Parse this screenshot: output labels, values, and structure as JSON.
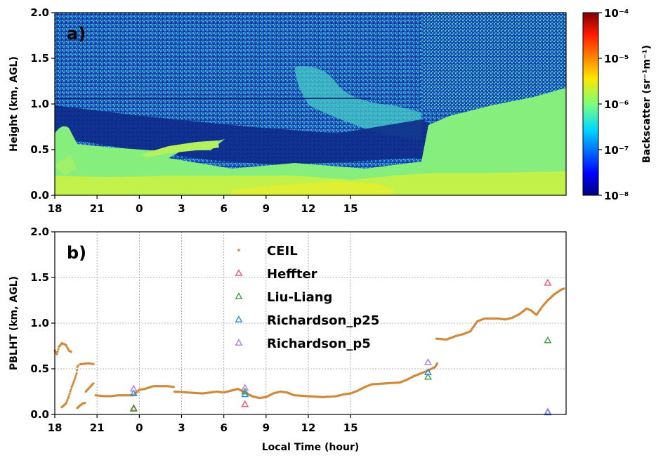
{
  "chart_data": [
    {
      "type": "heatmap",
      "panel_label": "a)",
      "ylabel": "Height (km, AGL)",
      "ylim": [
        0.0,
        2.0
      ],
      "yticks": [
        "0.0",
        "0.5",
        "1.0",
        "1.5",
        "2.0"
      ],
      "xticks": [
        "18",
        "21",
        "0",
        "3",
        "6",
        "9",
        "12",
        "15"
      ],
      "colorbar": {
        "label": "Backscatter (sr⁻¹m⁻¹)",
        "scale": "log",
        "ticks": [
          "10⁻⁸",
          "10⁻⁷",
          "10⁻⁶",
          "10⁻⁵",
          "10⁻⁴"
        ],
        "range_exponent": [
          -8,
          -4
        ],
        "colormap": "jet"
      }
    },
    {
      "type": "scatter",
      "panel_label": "b)",
      "xlabel": "Local Time (hour)",
      "ylabel": "PBLHT (km, AGL)",
      "ylim": [
        0.0,
        2.0
      ],
      "yticks": [
        "0.0",
        "0.5",
        "1.0",
        "1.5",
        "2.0"
      ],
      "xticks": [
        "18",
        "21",
        "0",
        "3",
        "6",
        "9",
        "12",
        "15"
      ],
      "x_hours_since_18": [
        0,
        3,
        6,
        9,
        12,
        15,
        18,
        21
      ],
      "grid": true,
      "legend_placement": "upper-center",
      "series": [
        {
          "name": "CEIL",
          "marker": "dot",
          "color": "#d08b3a",
          "segments": [
            [
              [
                0.0,
                0.7
              ],
              [
                0.15,
                0.66
              ],
              [
                0.3,
                0.74
              ],
              [
                0.5,
                0.78
              ],
              [
                0.8,
                0.76
              ],
              [
                1.0,
                0.7
              ],
              [
                1.2,
                0.68
              ]
            ],
            [
              [
                0.5,
                0.08
              ],
              [
                0.8,
                0.12
              ],
              [
                1.0,
                0.2
              ],
              [
                1.2,
                0.3
              ],
              [
                1.4,
                0.38
              ],
              [
                1.55,
                0.45
              ],
              [
                1.6,
                0.52
              ],
              [
                1.7,
                0.55
              ]
            ],
            [
              [
                1.6,
                0.07
              ],
              [
                1.8,
                0.1
              ],
              [
                2.0,
                0.12
              ],
              [
                2.2,
                0.13
              ]
            ],
            [
              [
                1.8,
                0.55
              ],
              [
                2.4,
                0.56
              ],
              [
                2.8,
                0.55
              ]
            ],
            [
              [
                2.2,
                0.25
              ],
              [
                2.5,
                0.3
              ],
              [
                2.8,
                0.35
              ]
            ],
            [
              [
                2.9,
                0.21
              ],
              [
                3.5,
                0.2
              ],
              [
                4.0,
                0.2
              ],
              [
                4.5,
                0.21
              ],
              [
                5.0,
                0.21
              ],
              [
                5.6,
                0.21
              ],
              [
                6.0,
                0.27
              ],
              [
                6.4,
                0.28
              ],
              [
                7.0,
                0.31
              ],
              [
                8.0,
                0.31
              ],
              [
                8.5,
                0.3
              ]
            ],
            [
              [
                8.5,
                0.25
              ],
              [
                9.5,
                0.24
              ],
              [
                10.5,
                0.23
              ],
              [
                11.5,
                0.25
              ],
              [
                12.0,
                0.24
              ],
              [
                12.5,
                0.26
              ],
              [
                13.0,
                0.28
              ],
              [
                13.5,
                0.24
              ],
              [
                14.0,
                0.2
              ],
              [
                14.5,
                0.18
              ],
              [
                15.0,
                0.19
              ],
              [
                15.5,
                0.23
              ],
              [
                16.0,
                0.25
              ],
              [
                16.5,
                0.24
              ],
              [
                17.0,
                0.21
              ],
              [
                18.0,
                0.2
              ],
              [
                19.0,
                0.19
              ],
              [
                20.0,
                0.2
              ],
              [
                20.5,
                0.22
              ],
              [
                21.0,
                0.23
              ],
              [
                21.5,
                0.26
              ],
              [
                22.0,
                0.3
              ],
              [
                22.5,
                0.33
              ],
              [
                23.5,
                0.34
              ],
              [
                24.5,
                0.35
              ],
              [
                25.0,
                0.38
              ],
              [
                25.5,
                0.42
              ],
              [
                26.0,
                0.45
              ],
              [
                26.5,
                0.48
              ],
              [
                27.0,
                0.52
              ],
              [
                27.2,
                0.57
              ]
            ],
            [
              [
                27.1,
                0.83
              ],
              [
                27.8,
                0.82
              ],
              [
                28.5,
                0.86
              ],
              [
                29.0,
                0.88
              ],
              [
                29.5,
                0.91
              ],
              [
                30.0,
                1.02
              ],
              [
                30.5,
                1.05
              ],
              [
                31.0,
                1.05
              ],
              [
                31.5,
                1.05
              ],
              [
                32.0,
                1.04
              ],
              [
                32.5,
                1.06
              ],
              [
                33.0,
                1.1
              ],
              [
                33.5,
                1.16
              ],
              [
                33.8,
                1.14
              ],
              [
                34.2,
                1.09
              ],
              [
                34.6,
                1.18
              ],
              [
                35.0,
                1.25
              ],
              [
                35.5,
                1.32
              ],
              [
                36.0,
                1.37
              ],
              [
                36.2,
                1.38
              ]
            ]
          ]
        },
        {
          "name": "Heffter",
          "marker": "triangle",
          "color": "#e45a6e",
          "points": [
            [
              5.6,
              0.07
            ],
            [
              13.5,
              0.11
            ],
            [
              35.0,
              1.44
            ]
          ]
        },
        {
          "name": "Liu-Liang",
          "marker": "triangle",
          "color": "#3aa040",
          "points": [
            [
              5.6,
              0.06
            ],
            [
              13.5,
              0.25
            ],
            [
              26.5,
              0.41
            ],
            [
              35.0,
              0.81
            ]
          ]
        },
        {
          "name": "Richardson_p25",
          "marker": "triangle",
          "color": "#2a8ee0",
          "points": [
            [
              5.6,
              0.23
            ],
            [
              13.5,
              0.22
            ],
            [
              26.5,
              0.46
            ],
            [
              35.0,
              0.02
            ]
          ]
        },
        {
          "name": "Richardson_p5",
          "marker": "triangle",
          "color": "#b07ce8",
          "points": [
            [
              5.6,
              0.28
            ],
            [
              13.5,
              0.29
            ],
            [
              26.5,
              0.57
            ],
            [
              35.0,
              0.03
            ]
          ]
        }
      ]
    }
  ]
}
